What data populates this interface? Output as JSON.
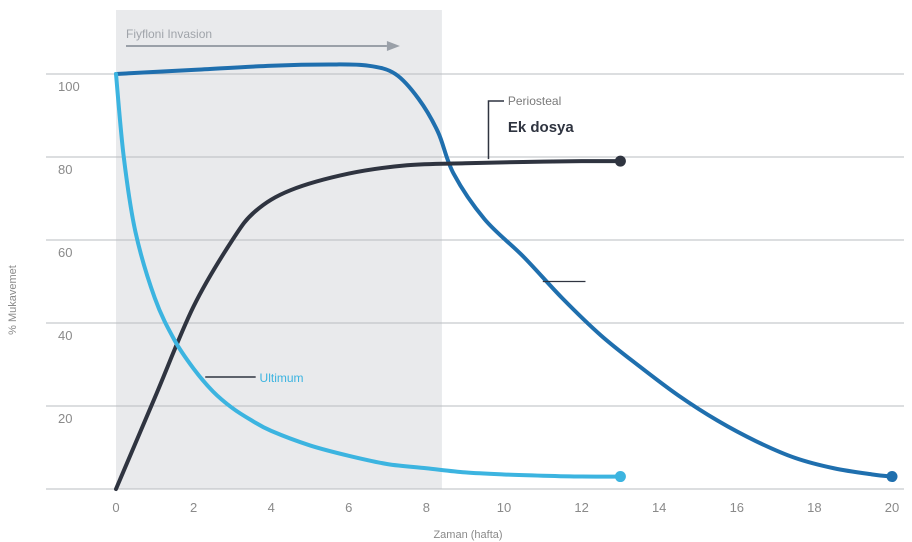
{
  "chart_data": {
    "type": "line",
    "title": "",
    "xlabel": "Zaman (hafta)",
    "ylabel": "% Mukavemet",
    "xlim": [
      0,
      20
    ],
    "ylim": [
      0,
      100
    ],
    "xticks": [
      "0",
      "2",
      "4",
      "6",
      "8",
      "10",
      "12",
      "14",
      "16",
      "18",
      "20"
    ],
    "yticks": [
      "20",
      "40",
      "60",
      "80",
      "100"
    ],
    "grid": "horizontal",
    "shaded_band": {
      "x_start": 0,
      "x_end": 8.4,
      "label": "Fiyfloni Invasion"
    },
    "series": [
      {
        "name": "",
        "color": "#1f6fae",
        "end_marker": true,
        "x": [
          0,
          2,
          4,
          5.5,
          6.5,
          7.2,
          7.8,
          8.3,
          8.7,
          9.5,
          10.5,
          11.5,
          12.5,
          13.5,
          14.5,
          15.5,
          16.5,
          17.5,
          18.5,
          19.5,
          20
        ],
        "y": [
          100,
          101,
          102,
          102.3,
          102,
          100,
          94,
          86,
          76,
          65,
          56,
          46,
          37,
          29.5,
          22.5,
          16.5,
          11.5,
          7.5,
          5,
          3.5,
          3
        ]
      },
      {
        "name": "Periosteal",
        "color": "#2f3440",
        "end_marker": true,
        "x": [
          0,
          1,
          2,
          3,
          3.6,
          4.5,
          6,
          7.5,
          9,
          10.5,
          12,
          13
        ],
        "y": [
          0,
          22,
          44,
          60,
          67,
          72,
          76,
          78,
          78.5,
          78.8,
          79,
          79
        ]
      },
      {
        "name": "Ultimum",
        "color": "#3cb4e0",
        "end_marker": true,
        "x": [
          0,
          0.2,
          0.5,
          1,
          1.5,
          2,
          2.5,
          3,
          3.5,
          4,
          5,
          6,
          7,
          8,
          9,
          10,
          11,
          12,
          13
        ],
        "y": [
          100,
          80,
          62,
          46,
          36,
          29,
          23.5,
          19.5,
          16.5,
          14,
          10.5,
          8,
          6,
          5,
          4,
          3.5,
          3.2,
          3,
          3
        ]
      }
    ],
    "annotations": {
      "periosteal_label": "Periosteal",
      "ek_dosya_label": "Ek dosya",
      "ultimum_label": "Ultimum"
    }
  }
}
